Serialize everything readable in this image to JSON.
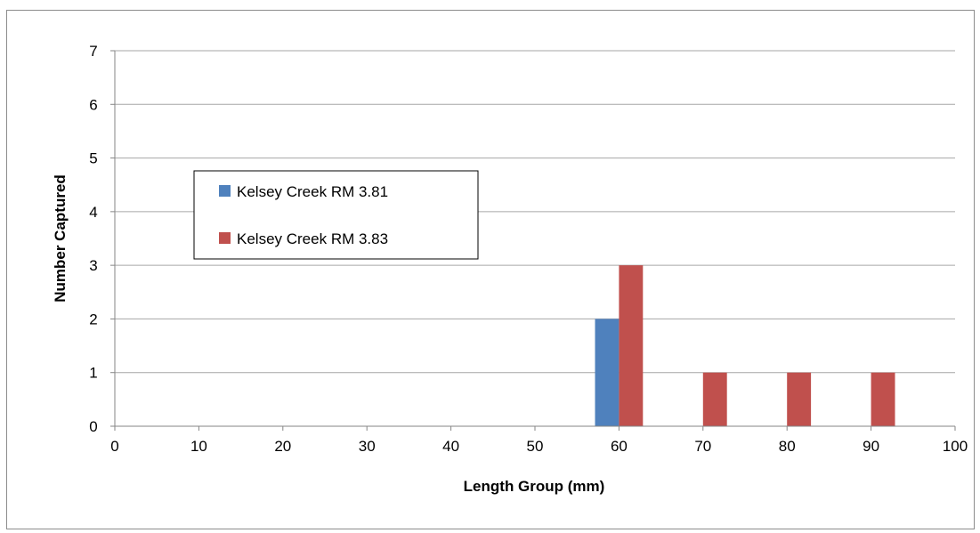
{
  "chart_data": {
    "type": "bar",
    "xlabel": "Length Group (mm)",
    "ylabel": "Number Captured",
    "xlim": [
      0,
      100
    ],
    "ylim": [
      0,
      7
    ],
    "x_ticks": [
      "0",
      "10",
      "20",
      "30",
      "40",
      "50",
      "60",
      "70",
      "80",
      "90",
      "100"
    ],
    "y_ticks": [
      "0",
      "1",
      "2",
      "3",
      "4",
      "5",
      "6",
      "7"
    ],
    "grid": true,
    "legend_position": "left-middle",
    "series": [
      {
        "name": "Kelsey Creek RM 3.81",
        "color": "#4f81bd",
        "points": [
          {
            "x": 60,
            "y": 2
          }
        ]
      },
      {
        "name": "Kelsey Creek RM 3.83",
        "color": "#c0504d",
        "points": [
          {
            "x": 60,
            "y": 3
          },
          {
            "x": 70,
            "y": 1
          },
          {
            "x": 80,
            "y": 1
          },
          {
            "x": 90,
            "y": 1
          }
        ]
      }
    ]
  }
}
